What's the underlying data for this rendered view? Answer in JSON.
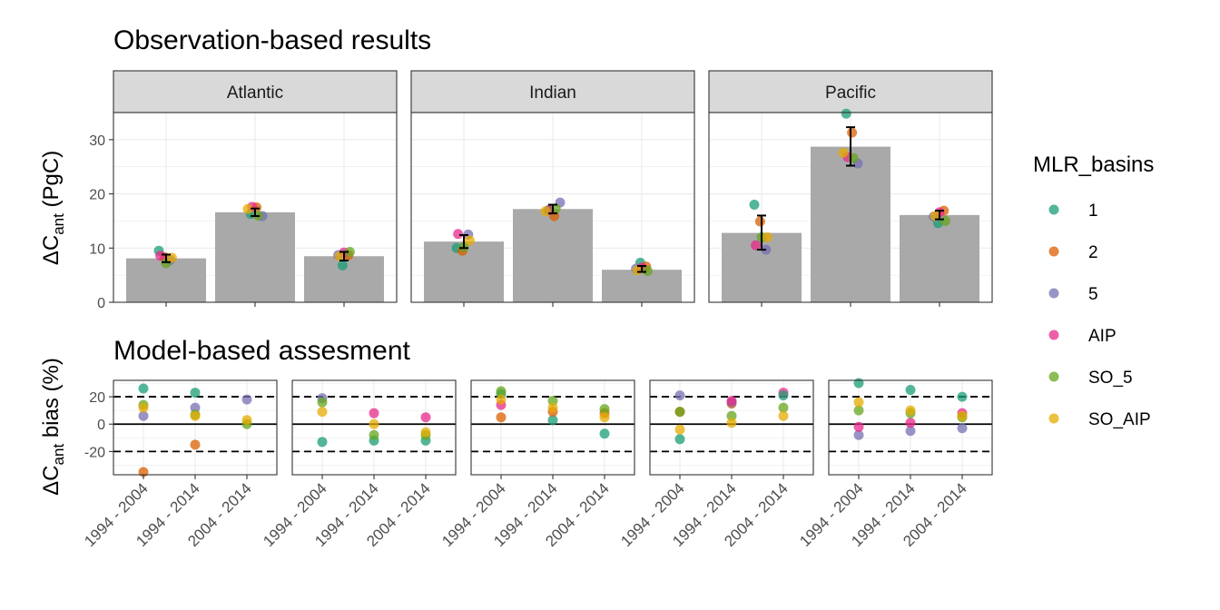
{
  "titles": {
    "obs": "Observation-based results",
    "model": "Model-based assesment"
  },
  "y_axes": {
    "obs": {
      "prefix": "ΔC",
      "sub": "ant",
      "suffix": " (PgC)"
    },
    "model": {
      "prefix": "ΔC",
      "sub": "ant",
      "suffix": " bias (%)"
    }
  },
  "legend": {
    "title": "MLR_basins",
    "entries": [
      {
        "label": "1",
        "color": "#1B9E77"
      },
      {
        "label": "2",
        "color": "#D95F02"
      },
      {
        "label": "5",
        "color": "#7570B3"
      },
      {
        "label": "AIP",
        "color": "#E7298A"
      },
      {
        "label": "SO_5",
        "color": "#66A61E"
      },
      {
        "label": "SO_AIP",
        "color": "#E6AB02"
      }
    ]
  },
  "chart_data": [
    {
      "type": "bar",
      "title": "Observation-based results",
      "ylabel": "ΔCant (PgC)",
      "ylim": [
        0,
        35
      ],
      "yticks": [
        0,
        10,
        20,
        30
      ],
      "bar_color": "#A9A9A9",
      "facets": [
        {
          "name": "Atlantic",
          "bars": [
            8.1,
            16.6,
            8.5
          ],
          "errors": [
            [
              7.4,
              8.8
            ],
            [
              15.9,
              17.3
            ],
            [
              7.7,
              9.3
            ]
          ],
          "points": [
            {
              "series": "1",
              "x": 0,
              "y": 9.5
            },
            {
              "series": "2",
              "x": 0,
              "y": 8.3
            },
            {
              "series": "5",
              "x": 0,
              "y": 7.8
            },
            {
              "series": "AIP",
              "x": 0,
              "y": 8.6
            },
            {
              "series": "SO_5",
              "x": 0,
              "y": 7.2
            },
            {
              "series": "SO_AIP",
              "x": 0,
              "y": 8.2
            },
            {
              "series": "1",
              "x": 1,
              "y": 16.3
            },
            {
              "series": "2",
              "x": 1,
              "y": 17.5
            },
            {
              "series": "5",
              "x": 1,
              "y": 15.9
            },
            {
              "series": "AIP",
              "x": 1,
              "y": 17.6
            },
            {
              "series": "SO_5",
              "x": 1,
              "y": 16.0
            },
            {
              "series": "SO_AIP",
              "x": 1,
              "y": 17.2
            },
            {
              "series": "1",
              "x": 2,
              "y": 6.8
            },
            {
              "series": "2",
              "x": 2,
              "y": 8.7
            },
            {
              "series": "5",
              "x": 2,
              "y": 8.7
            },
            {
              "series": "AIP",
              "x": 2,
              "y": 9.2
            },
            {
              "series": "SO_5",
              "x": 2,
              "y": 9.3
            },
            {
              "series": "SO_AIP",
              "x": 2,
              "y": 8.5
            }
          ]
        },
        {
          "name": "Indian",
          "bars": [
            11.2,
            17.2,
            6.0
          ],
          "errors": [
            [
              10.0,
              12.4
            ],
            [
              16.4,
              18.0
            ],
            [
              5.6,
              6.7
            ]
          ],
          "points": [
            {
              "series": "1",
              "x": 0,
              "y": 10.0
            },
            {
              "series": "2",
              "x": 0,
              "y": 9.5
            },
            {
              "series": "5",
              "x": 0,
              "y": 12.5
            },
            {
              "series": "AIP",
              "x": 0,
              "y": 12.6
            },
            {
              "series": "SO_5",
              "x": 0,
              "y": 10.2
            },
            {
              "series": "SO_AIP",
              "x": 0,
              "y": 11.4
            },
            {
              "series": "1",
              "x": 1,
              "y": 17.0
            },
            {
              "series": "2",
              "x": 1,
              "y": 15.9
            },
            {
              "series": "5",
              "x": 1,
              "y": 18.4
            },
            {
              "series": "AIP",
              "x": 1,
              "y": 17.0
            },
            {
              "series": "SO_5",
              "x": 1,
              "y": 17.3
            },
            {
              "series": "SO_AIP",
              "x": 1,
              "y": 16.8
            },
            {
              "series": "1",
              "x": 2,
              "y": 7.3
            },
            {
              "series": "2",
              "x": 2,
              "y": 6.6
            },
            {
              "series": "5",
              "x": 2,
              "y": 6.2
            },
            {
              "series": "AIP",
              "x": 2,
              "y": 6.4
            },
            {
              "series": "SO_5",
              "x": 2,
              "y": 5.8
            },
            {
              "series": "SO_AIP",
              "x": 2,
              "y": 5.9
            }
          ]
        },
        {
          "name": "Pacific",
          "bars": [
            12.8,
            28.7,
            16.1
          ],
          "errors": [
            [
              9.7,
              16.0
            ],
            [
              25.2,
              32.3
            ],
            [
              15.3,
              16.9
            ]
          ],
          "points": [
            {
              "series": "1",
              "x": 0,
              "y": 18.0
            },
            {
              "series": "2",
              "x": 0,
              "y": 14.9
            },
            {
              "series": "5",
              "x": 0,
              "y": 9.7
            },
            {
              "series": "AIP",
              "x": 0,
              "y": 10.5
            },
            {
              "series": "SO_5",
              "x": 0,
              "y": 12.0
            },
            {
              "series": "SO_AIP",
              "x": 0,
              "y": 12.0
            },
            {
              "series": "1",
              "x": 1,
              "y": 34.8
            },
            {
              "series": "2",
              "x": 1,
              "y": 31.3
            },
            {
              "series": "5",
              "x": 1,
              "y": 25.6
            },
            {
              "series": "AIP",
              "x": 1,
              "y": 26.8
            },
            {
              "series": "SO_5",
              "x": 1,
              "y": 26.6
            },
            {
              "series": "SO_AIP",
              "x": 1,
              "y": 27.6
            },
            {
              "series": "1",
              "x": 2,
              "y": 14.6
            },
            {
              "series": "2",
              "x": 2,
              "y": 16.9
            },
            {
              "series": "5",
              "x": 2,
              "y": 15.8
            },
            {
              "series": "AIP",
              "x": 2,
              "y": 16.6
            },
            {
              "series": "SO_5",
              "x": 2,
              "y": 15.0
            },
            {
              "series": "SO_AIP",
              "x": 2,
              "y": 15.9
            }
          ]
        }
      ]
    },
    {
      "type": "scatter",
      "title": "Model-based assesment",
      "ylabel": "ΔCant bias (%)",
      "ylim": [
        -37,
        32
      ],
      "yticks": [
        -20,
        0,
        20
      ],
      "hlines_dashed": [
        -20,
        20
      ],
      "hline_solid": 0,
      "categories": [
        "1994 - 2004",
        "1994 - 2014",
        "2004 - 2014"
      ],
      "facets": [
        {
          "points": [
            {
              "series": "1",
              "x": 0,
              "y": 26
            },
            {
              "series": "2",
              "x": 0,
              "y": -35
            },
            {
              "series": "5",
              "x": 0,
              "y": 6
            },
            {
              "series": "SO_5",
              "x": 0,
              "y": 14
            },
            {
              "series": "SO_AIP",
              "x": 0,
              "y": 12
            },
            {
              "series": "1",
              "x": 1,
              "y": 23
            },
            {
              "series": "2",
              "x": 1,
              "y": -15
            },
            {
              "series": "5",
              "x": 1,
              "y": 12
            },
            {
              "series": "SO_5",
              "x": 1,
              "y": 7
            },
            {
              "series": "SO_AIP",
              "x": 1,
              "y": 6
            },
            {
              "series": "5",
              "x": 2,
              "y": 18
            },
            {
              "series": "SO_5",
              "x": 2,
              "y": 0
            },
            {
              "series": "SO_AIP",
              "x": 2,
              "y": 3
            }
          ]
        },
        {
          "points": [
            {
              "series": "1",
              "x": 0,
              "y": -13
            },
            {
              "series": "5",
              "x": 0,
              "y": 19
            },
            {
              "series": "SO_5",
              "x": 0,
              "y": 16
            },
            {
              "series": "SO_AIP",
              "x": 0,
              "y": 9
            },
            {
              "series": "1",
              "x": 1,
              "y": -12
            },
            {
              "series": "AIP",
              "x": 1,
              "y": 8
            },
            {
              "series": "SO_5",
              "x": 1,
              "y": -8
            },
            {
              "series": "SO_AIP",
              "x": 1,
              "y": 0
            },
            {
              "series": "1",
              "x": 2,
              "y": -12
            },
            {
              "series": "AIP",
              "x": 2,
              "y": 5
            },
            {
              "series": "SO_5",
              "x": 2,
              "y": -8
            },
            {
              "series": "SO_AIP",
              "x": 2,
              "y": -6
            }
          ]
        },
        {
          "points": [
            {
              "series": "1",
              "x": 0,
              "y": 22
            },
            {
              "series": "2",
              "x": 0,
              "y": 5
            },
            {
              "series": "AIP",
              "x": 0,
              "y": 14
            },
            {
              "series": "SO_5",
              "x": 0,
              "y": 24
            },
            {
              "series": "SO_AIP",
              "x": 0,
              "y": 18
            },
            {
              "series": "1",
              "x": 1,
              "y": 3
            },
            {
              "series": "2",
              "x": 1,
              "y": 9
            },
            {
              "series": "SO_5",
              "x": 1,
              "y": 17
            },
            {
              "series": "SO_AIP",
              "x": 1,
              "y": 12
            },
            {
              "series": "1",
              "x": 2,
              "y": -7
            },
            {
              "series": "2",
              "x": 2,
              "y": 8
            },
            {
              "series": "SO_5",
              "x": 2,
              "y": 11
            },
            {
              "series": "SO_AIP",
              "x": 2,
              "y": 5
            }
          ]
        },
        {
          "points": [
            {
              "series": "1",
              "x": 0,
              "y": -11
            },
            {
              "series": "2",
              "x": 0,
              "y": 9
            },
            {
              "series": "5",
              "x": 0,
              "y": 21
            },
            {
              "series": "SO_5",
              "x": 0,
              "y": 9
            },
            {
              "series": "SO_AIP",
              "x": 0,
              "y": -4
            },
            {
              "series": "2",
              "x": 1,
              "y": 15
            },
            {
              "series": "5",
              "x": 1,
              "y": 16
            },
            {
              "series": "AIP",
              "x": 1,
              "y": 17
            },
            {
              "series": "SO_5",
              "x": 1,
              "y": 6
            },
            {
              "series": "SO_AIP",
              "x": 1,
              "y": 1
            },
            {
              "series": "AIP",
              "x": 2,
              "y": 23
            },
            {
              "series": "1",
              "x": 2,
              "y": 21
            },
            {
              "series": "SO_5",
              "x": 2,
              "y": 12
            },
            {
              "series": "SO_AIP",
              "x": 2,
              "y": 6
            }
          ]
        },
        {
          "points": [
            {
              "series": "1",
              "x": 0,
              "y": 30
            },
            {
              "series": "5",
              "x": 0,
              "y": -8
            },
            {
              "series": "AIP",
              "x": 0,
              "y": -2
            },
            {
              "series": "SO_5",
              "x": 0,
              "y": 10
            },
            {
              "series": "SO_AIP",
              "x": 0,
              "y": 16
            },
            {
              "series": "1",
              "x": 1,
              "y": 25
            },
            {
              "series": "5",
              "x": 1,
              "y": -5
            },
            {
              "series": "AIP",
              "x": 1,
              "y": 1
            },
            {
              "series": "SO_5",
              "x": 1,
              "y": 8
            },
            {
              "series": "SO_AIP",
              "x": 1,
              "y": 10
            },
            {
              "series": "1",
              "x": 2,
              "y": 20
            },
            {
              "series": "5",
              "x": 2,
              "y": -3
            },
            {
              "series": "AIP",
              "x": 2,
              "y": 8
            },
            {
              "series": "SO_5",
              "x": 2,
              "y": 5
            },
            {
              "series": "SO_AIP",
              "x": 2,
              "y": 6
            }
          ]
        }
      ]
    }
  ]
}
